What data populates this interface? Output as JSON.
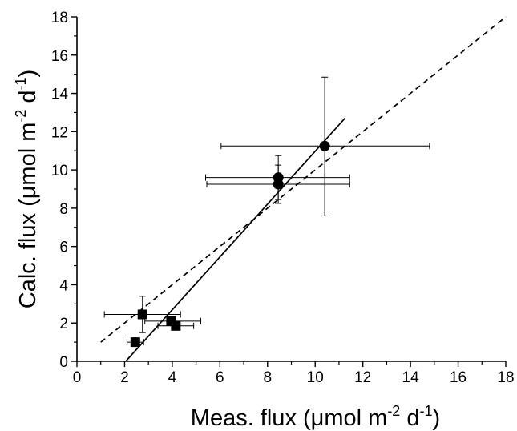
{
  "chart_data": {
    "type": "scatter",
    "xlabel": "Meas. flux (μmol m-2 d-1)",
    "ylabel": "Calc. flux (μmol m-2 d-1)",
    "xlabel_parts": [
      "Meas. flux (μmol m",
      "-2",
      " d",
      "-1",
      ")"
    ],
    "ylabel_parts": [
      "Calc. flux (μmol m",
      "-2",
      " d",
      "-1",
      ")"
    ],
    "xlim": [
      0,
      18
    ],
    "ylim": [
      0,
      18
    ],
    "xticks": [
      0,
      2,
      4,
      6,
      8,
      10,
      12,
      14,
      16,
      18
    ],
    "yticks": [
      0,
      2,
      4,
      6,
      8,
      10,
      12,
      14,
      16,
      18
    ],
    "grid": false,
    "series": [
      {
        "marker": "circle",
        "points": [
          {
            "x": 8.45,
            "y": 9.6,
            "xerr_low": 5.4,
            "xerr_high": 11.45,
            "yerr_low": 8.45,
            "yerr_high": 10.75
          },
          {
            "x": 8.45,
            "y": 9.25,
            "xerr_low": 5.45,
            "xerr_high": 11.45,
            "yerr_low": 8.25,
            "yerr_high": 10.25
          },
          {
            "x": 10.4,
            "y": 11.25,
            "xerr_low": 6.05,
            "xerr_high": 14.8,
            "yerr_low": 7.6,
            "yerr_high": 14.85
          }
        ]
      },
      {
        "marker": "square",
        "points": [
          {
            "x": 2.75,
            "y": 2.45,
            "xerr_low": 1.15,
            "xerr_high": 4.35,
            "yerr_low": 1.5,
            "yerr_high": 3.4
          },
          {
            "x": 2.45,
            "y": 1.0,
            "xerr_low": 2.1,
            "xerr_high": 2.8,
            "yerr_low": 0.85,
            "yerr_high": 1.15
          },
          {
            "x": 3.95,
            "y": 2.1,
            "xerr_low": 2.85,
            "xerr_high": 5.2,
            "yerr_low": 1.95,
            "yerr_high": 2.25
          },
          {
            "x": 4.15,
            "y": 1.85,
            "xerr_low": 3.4,
            "xerr_high": 4.9,
            "yerr_low": 1.7,
            "yerr_high": 2.0
          }
        ]
      }
    ],
    "lines": [
      {
        "style": "solid",
        "x": [
          2.05,
          11.25
        ],
        "y": [
          0.0,
          12.7
        ]
      },
      {
        "style": "dashed",
        "x": [
          1.0,
          18.0
        ],
        "y": [
          1.0,
          18.0
        ]
      }
    ],
    "colors": {
      "ink": "#000000",
      "background": "#ffffff"
    }
  }
}
